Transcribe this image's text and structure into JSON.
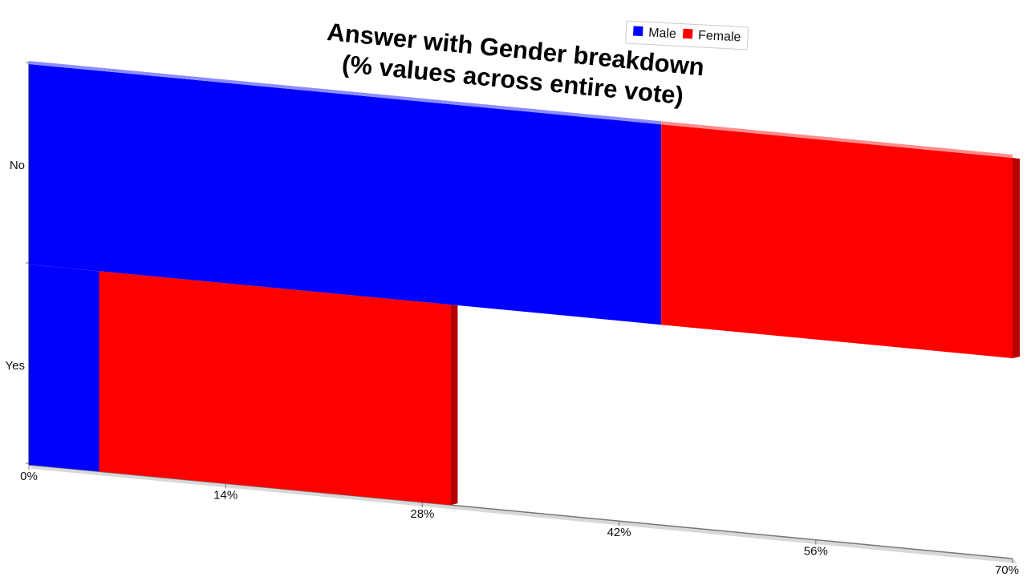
{
  "chart_data": {
    "type": "bar",
    "orientation": "horizontal",
    "stacked": true,
    "title": "Answer with Gender breakdown\n(% values across entire vote)",
    "categories": [
      "No",
      "Yes"
    ],
    "series": [
      {
        "name": "Male",
        "color": "#0000ff",
        "values": [
          45,
          5
        ]
      },
      {
        "name": "Female",
        "color": "#ff0000",
        "values": [
          25,
          25
        ]
      }
    ],
    "xlim": [
      0,
      70
    ],
    "xticks": [
      "0%",
      "14%",
      "28%",
      "42%",
      "56%",
      "70%"
    ],
    "legend_position": "top-right",
    "perspective": "3d-tilted",
    "grid": false
  }
}
